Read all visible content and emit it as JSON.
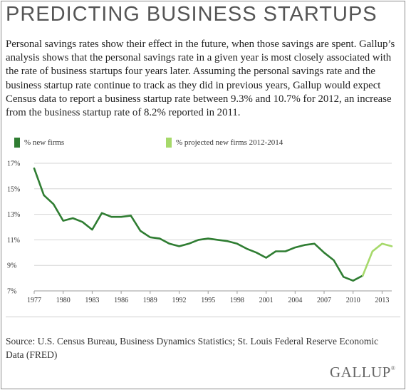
{
  "title": "PREDICTING BUSINESS STARTUPS",
  "intro": "Personal savings rates show their effect in the future, when those savings are spent. Gallup’s analysis shows that the personal savings rate in a given year is most closely associated with the rate of business startups four years later. Assuming the personal savings rate and the business startup rate continue to track as they did in previous years, Gallup would expect Census data to report a business startup rate between 9.3% and 10.7% for 2012, an increase from the business startup rate of 8.2% reported in 2011.",
  "source": "Source: U.S. Census Bureau, Business Dynamics Statistics; St. Louis Federal Reserve Economic Data (FRED)",
  "logo": {
    "text": "GALLUP",
    "mark": "®"
  },
  "chart_data": {
    "type": "line",
    "ylim": [
      7,
      17
    ],
    "xlim": [
      1977,
      2014
    ],
    "y_ticks": [
      "17%",
      "15%",
      "13%",
      "11%",
      "9%",
      "7%"
    ],
    "y_tick_values": [
      17,
      15,
      13,
      11,
      9,
      7
    ],
    "x_ticks": [
      "1977",
      "1980",
      "1983",
      "1986",
      "1989",
      "1992",
      "1995",
      "1998",
      "2001",
      "2004",
      "2007",
      "2010",
      "2013"
    ],
    "x_tick_values": [
      1977,
      1980,
      1983,
      1986,
      1989,
      1992,
      1995,
      1998,
      2001,
      2004,
      2007,
      2010,
      2013
    ],
    "grid": true,
    "legend_position": "top-left",
    "series": [
      {
        "name": "% new firms",
        "color": "#2f7d32",
        "x": [
          1977,
          1978,
          1979,
          1980,
          1981,
          1982,
          1983,
          1984,
          1985,
          1986,
          1987,
          1988,
          1989,
          1990,
          1991,
          1992,
          1993,
          1994,
          1995,
          1996,
          1997,
          1998,
          1999,
          2000,
          2001,
          2002,
          2003,
          2004,
          2005,
          2006,
          2007,
          2008,
          2009,
          2010,
          2011
        ],
        "values": [
          16.6,
          14.5,
          13.8,
          12.5,
          12.7,
          12.4,
          11.8,
          13.1,
          12.8,
          12.8,
          12.9,
          11.7,
          11.2,
          11.1,
          10.7,
          10.5,
          10.7,
          11.0,
          11.1,
          11.0,
          10.9,
          10.7,
          10.3,
          10.0,
          9.6,
          10.1,
          10.1,
          10.4,
          10.6,
          10.7,
          10.0,
          9.4,
          8.1,
          7.8,
          8.2
        ]
      },
      {
        "name": "% projected new firms 2012-2014",
        "color": "#a6d96a",
        "x": [
          2011,
          2012,
          2013,
          2014
        ],
        "values": [
          8.2,
          10.1,
          10.7,
          10.5
        ]
      }
    ]
  }
}
